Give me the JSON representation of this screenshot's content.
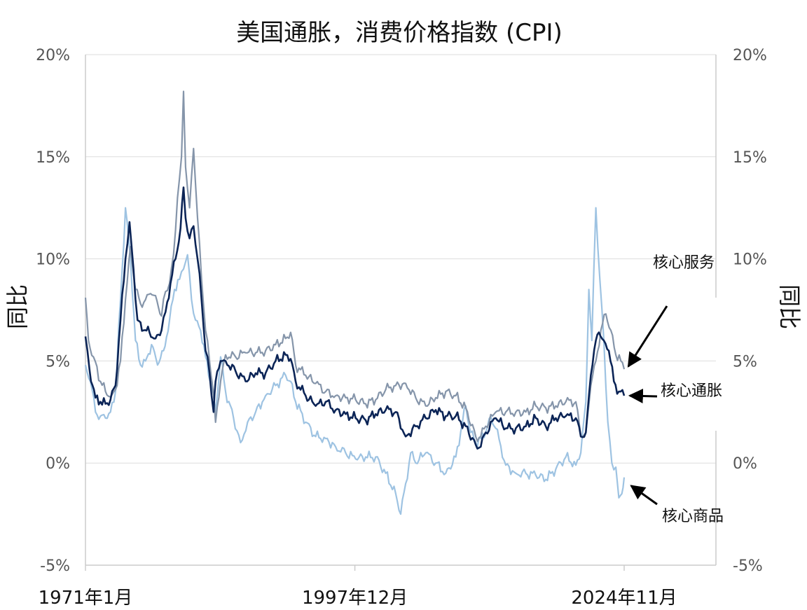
{
  "chart_data": {
    "type": "line",
    "title": "美国通胀，消费价格指数 (CPI)",
    "ylabel_left": "同比",
    "ylabel_right": "同比",
    "ylim": [
      -5,
      20
    ],
    "yticks": [
      "-5%",
      "0%",
      "5%",
      "10%",
      "15%",
      "20%"
    ],
    "ytick_values": [
      -5,
      0,
      5,
      10,
      15,
      20
    ],
    "xlim": [
      1971.0,
      2034.0
    ],
    "xticks": [
      "1971年1月",
      "1997年12月",
      "2024年11月"
    ],
    "xtick_values": [
      1971.0,
      1997.92,
      2024.83
    ],
    "grid": true,
    "colors": {
      "services": "#8595aa",
      "core": "#0b2456",
      "goods": "#9ec3e2",
      "annotation": "#000000"
    },
    "series": [
      {
        "name": "核心服务",
        "key": "services",
        "points": [
          [
            1971.0,
            8.1
          ],
          [
            1971.3,
            6.0
          ],
          [
            1971.8,
            5.2
          ],
          [
            1972.5,
            4.0
          ],
          [
            1973.0,
            3.5
          ],
          [
            1973.6,
            3.3
          ],
          [
            1974.0,
            3.6
          ],
          [
            1974.5,
            5.0
          ],
          [
            1975.0,
            8.0
          ],
          [
            1975.5,
            10.6
          ],
          [
            1976.0,
            8.5
          ],
          [
            1976.5,
            7.8
          ],
          [
            1977.0,
            8.0
          ],
          [
            1977.5,
            8.3
          ],
          [
            1978.0,
            8.2
          ],
          [
            1978.6,
            7.2
          ],
          [
            1979.0,
            8.4
          ],
          [
            1979.4,
            8.8
          ],
          [
            1979.8,
            10.2
          ],
          [
            1980.2,
            13.0
          ],
          [
            1980.6,
            15.0
          ],
          [
            1980.8,
            18.2
          ],
          [
            1981.0,
            14.5
          ],
          [
            1981.4,
            12.5
          ],
          [
            1981.8,
            15.4
          ],
          [
            1982.2,
            12.0
          ],
          [
            1982.6,
            9.0
          ],
          [
            1983.0,
            6.5
          ],
          [
            1983.4,
            5.0
          ],
          [
            1983.7,
            3.8
          ],
          [
            1984.0,
            2.0
          ],
          [
            1984.5,
            4.0
          ],
          [
            1985.0,
            5.3
          ],
          [
            1986.0,
            5.2
          ],
          [
            1987.0,
            5.4
          ],
          [
            1988.0,
            5.4
          ],
          [
            1989.0,
            5.5
          ],
          [
            1990.0,
            5.8
          ],
          [
            1991.0,
            6.1
          ],
          [
            1991.5,
            6.4
          ],
          [
            1992.0,
            4.8
          ],
          [
            1993.0,
            4.3
          ],
          [
            1994.0,
            3.9
          ],
          [
            1995.0,
            3.5
          ],
          [
            1996.0,
            3.3
          ],
          [
            1997.0,
            3.2
          ],
          [
            1998.0,
            3.1
          ],
          [
            1999.0,
            2.9
          ],
          [
            2000.0,
            3.1
          ],
          [
            2001.0,
            3.6
          ],
          [
            2002.0,
            3.8
          ],
          [
            2003.0,
            3.9
          ],
          [
            2004.0,
            3.2
          ],
          [
            2005.0,
            2.8
          ],
          [
            2006.0,
            3.2
          ],
          [
            2007.0,
            3.5
          ],
          [
            2008.0,
            3.3
          ],
          [
            2009.0,
            2.7
          ],
          [
            2010.0,
            1.3
          ],
          [
            2010.5,
            1.3
          ],
          [
            2011.0,
            1.8
          ],
          [
            2012.0,
            2.5
          ],
          [
            2013.0,
            2.5
          ],
          [
            2014.0,
            2.5
          ],
          [
            2015.0,
            2.5
          ],
          [
            2016.0,
            2.8
          ],
          [
            2017.0,
            2.7
          ],
          [
            2018.0,
            2.8
          ],
          [
            2019.0,
            3.0
          ],
          [
            2020.0,
            3.0
          ],
          [
            2020.5,
            1.3
          ],
          [
            2021.0,
            1.5
          ],
          [
            2021.5,
            3.8
          ],
          [
            2022.0,
            5.0
          ],
          [
            2022.5,
            6.5
          ],
          [
            2023.0,
            7.3
          ],
          [
            2023.5,
            6.5
          ],
          [
            2024.0,
            5.3
          ],
          [
            2024.5,
            5.0
          ],
          [
            2024.83,
            4.6
          ]
        ]
      },
      {
        "name": "核心通胀",
        "key": "core",
        "points": [
          [
            1971.0,
            6.2
          ],
          [
            1971.4,
            4.6
          ],
          [
            1972.0,
            3.2
          ],
          [
            1972.5,
            3.0
          ],
          [
            1973.0,
            2.9
          ],
          [
            1973.5,
            3.1
          ],
          [
            1974.0,
            3.8
          ],
          [
            1974.5,
            7.0
          ],
          [
            1975.0,
            10.0
          ],
          [
            1975.4,
            11.8
          ],
          [
            1975.8,
            9.5
          ],
          [
            1976.2,
            7.0
          ],
          [
            1976.8,
            6.5
          ],
          [
            1977.4,
            6.4
          ],
          [
            1978.0,
            6.1
          ],
          [
            1978.6,
            6.5
          ],
          [
            1979.0,
            7.4
          ],
          [
            1979.5,
            8.8
          ],
          [
            1980.0,
            10.0
          ],
          [
            1980.5,
            11.5
          ],
          [
            1980.8,
            13.5
          ],
          [
            1981.0,
            12.0
          ],
          [
            1981.4,
            11.0
          ],
          [
            1981.8,
            11.6
          ],
          [
            1982.2,
            10.0
          ],
          [
            1982.6,
            8.0
          ],
          [
            1983.0,
            5.5
          ],
          [
            1983.4,
            4.4
          ],
          [
            1983.8,
            2.5
          ],
          [
            1984.0,
            4.0
          ],
          [
            1984.5,
            5.0
          ],
          [
            1985.0,
            5.0
          ],
          [
            1986.0,
            4.5
          ],
          [
            1987.0,
            4.0
          ],
          [
            1988.0,
            4.4
          ],
          [
            1989.0,
            4.4
          ],
          [
            1990.0,
            5.0
          ],
          [
            1991.0,
            5.3
          ],
          [
            1991.5,
            5.1
          ],
          [
            1992.0,
            4.0
          ],
          [
            1993.0,
            3.3
          ],
          [
            1994.0,
            2.8
          ],
          [
            1995.0,
            3.0
          ],
          [
            1996.0,
            2.6
          ],
          [
            1997.0,
            2.4
          ],
          [
            1998.0,
            2.2
          ],
          [
            1999.0,
            2.1
          ],
          [
            2000.0,
            2.4
          ],
          [
            2001.0,
            2.6
          ],
          [
            2002.0,
            2.5
          ],
          [
            2003.0,
            1.3
          ],
          [
            2004.0,
            1.8
          ],
          [
            2005.0,
            2.2
          ],
          [
            2006.0,
            2.6
          ],
          [
            2007.0,
            2.3
          ],
          [
            2008.0,
            2.3
          ],
          [
            2009.0,
            1.8
          ],
          [
            2010.0,
            0.9
          ],
          [
            2010.5,
            0.8
          ],
          [
            2011.0,
            1.5
          ],
          [
            2012.0,
            2.2
          ],
          [
            2013.0,
            1.7
          ],
          [
            2014.0,
            1.7
          ],
          [
            2015.0,
            1.8
          ],
          [
            2016.0,
            2.2
          ],
          [
            2017.0,
            1.8
          ],
          [
            2018.0,
            2.2
          ],
          [
            2019.0,
            2.3
          ],
          [
            2020.0,
            2.2
          ],
          [
            2020.5,
            1.3
          ],
          [
            2021.0,
            1.5
          ],
          [
            2021.5,
            4.3
          ],
          [
            2022.0,
            6.0
          ],
          [
            2022.3,
            6.4
          ],
          [
            2022.8,
            6.0
          ],
          [
            2023.3,
            5.5
          ],
          [
            2023.8,
            4.0
          ],
          [
            2024.3,
            3.5
          ],
          [
            2024.83,
            3.3
          ]
        ]
      },
      {
        "name": "核心商品",
        "key": "goods",
        "points": [
          [
            1971.0,
            4.8
          ],
          [
            1971.5,
            4.0
          ],
          [
            1972.0,
            2.5
          ],
          [
            1972.5,
            2.3
          ],
          [
            1973.0,
            2.2
          ],
          [
            1973.5,
            2.5
          ],
          [
            1974.0,
            3.5
          ],
          [
            1974.5,
            8.0
          ],
          [
            1975.0,
            12.5
          ],
          [
            1975.5,
            10.0
          ],
          [
            1976.0,
            6.0
          ],
          [
            1976.5,
            4.8
          ],
          [
            1977.0,
            5.0
          ],
          [
            1977.6,
            5.8
          ],
          [
            1978.2,
            4.8
          ],
          [
            1978.8,
            5.5
          ],
          [
            1979.4,
            7.0
          ],
          [
            1979.9,
            8.5
          ],
          [
            1980.4,
            9.0
          ],
          [
            1980.8,
            9.5
          ],
          [
            1981.2,
            10.2
          ],
          [
            1981.6,
            8.0
          ],
          [
            1982.0,
            7.0
          ],
          [
            1982.5,
            6.5
          ],
          [
            1983.0,
            5.2
          ],
          [
            1983.6,
            3.8
          ],
          [
            1984.0,
            2.5
          ],
          [
            1984.5,
            5.2
          ],
          [
            1985.0,
            3.5
          ],
          [
            1985.8,
            2.2
          ],
          [
            1986.5,
            1.0
          ],
          [
            1987.2,
            2.0
          ],
          [
            1988.0,
            2.5
          ],
          [
            1989.0,
            3.3
          ],
          [
            1990.0,
            3.8
          ],
          [
            1991.0,
            4.3
          ],
          [
            1991.5,
            4.0
          ],
          [
            1992.0,
            3.0
          ],
          [
            1993.0,
            2.0
          ],
          [
            1994.0,
            1.3
          ],
          [
            1995.0,
            1.2
          ],
          [
            1996.0,
            0.8
          ],
          [
            1997.0,
            0.5
          ],
          [
            1998.0,
            0.2
          ],
          [
            1999.0,
            0.3
          ],
          [
            2000.0,
            0.3
          ],
          [
            2001.0,
            -0.5
          ],
          [
            2002.0,
            -1.5
          ],
          [
            2002.5,
            -2.5
          ],
          [
            2003.0,
            -1.0
          ],
          [
            2003.5,
            0.5
          ],
          [
            2004.0,
            0.0
          ],
          [
            2005.0,
            0.5
          ],
          [
            2006.0,
            0.0
          ],
          [
            2007.0,
            -0.5
          ],
          [
            2008.0,
            0.3
          ],
          [
            2009.0,
            2.8
          ],
          [
            2009.5,
            1.5
          ],
          [
            2010.0,
            1.0
          ],
          [
            2010.5,
            1.2
          ],
          [
            2011.0,
            1.5
          ],
          [
            2011.5,
            2.3
          ],
          [
            2012.0,
            1.7
          ],
          [
            2013.0,
            -0.1
          ],
          [
            2014.0,
            -0.5
          ],
          [
            2015.0,
            -0.5
          ],
          [
            2016.0,
            -0.6
          ],
          [
            2017.0,
            -0.8
          ],
          [
            2018.0,
            -0.3
          ],
          [
            2019.0,
            0.3
          ],
          [
            2020.0,
            -0.1
          ],
          [
            2020.5,
            0.5
          ],
          [
            2021.0,
            3.0
          ],
          [
            2021.3,
            8.5
          ],
          [
            2021.6,
            6.0
          ],
          [
            2022.0,
            12.5
          ],
          [
            2022.4,
            9.0
          ],
          [
            2022.8,
            6.0
          ],
          [
            2023.2,
            2.0
          ],
          [
            2023.6,
            0.0
          ],
          [
            2024.0,
            -0.2
          ],
          [
            2024.3,
            -1.7
          ],
          [
            2024.6,
            -1.5
          ],
          [
            2024.83,
            -0.7
          ]
        ]
      }
    ],
    "annotations": [
      {
        "label": "核心服务",
        "series": "services"
      },
      {
        "label": "核心通胀",
        "series": "core"
      },
      {
        "label": "核心商品",
        "series": "goods"
      }
    ]
  }
}
